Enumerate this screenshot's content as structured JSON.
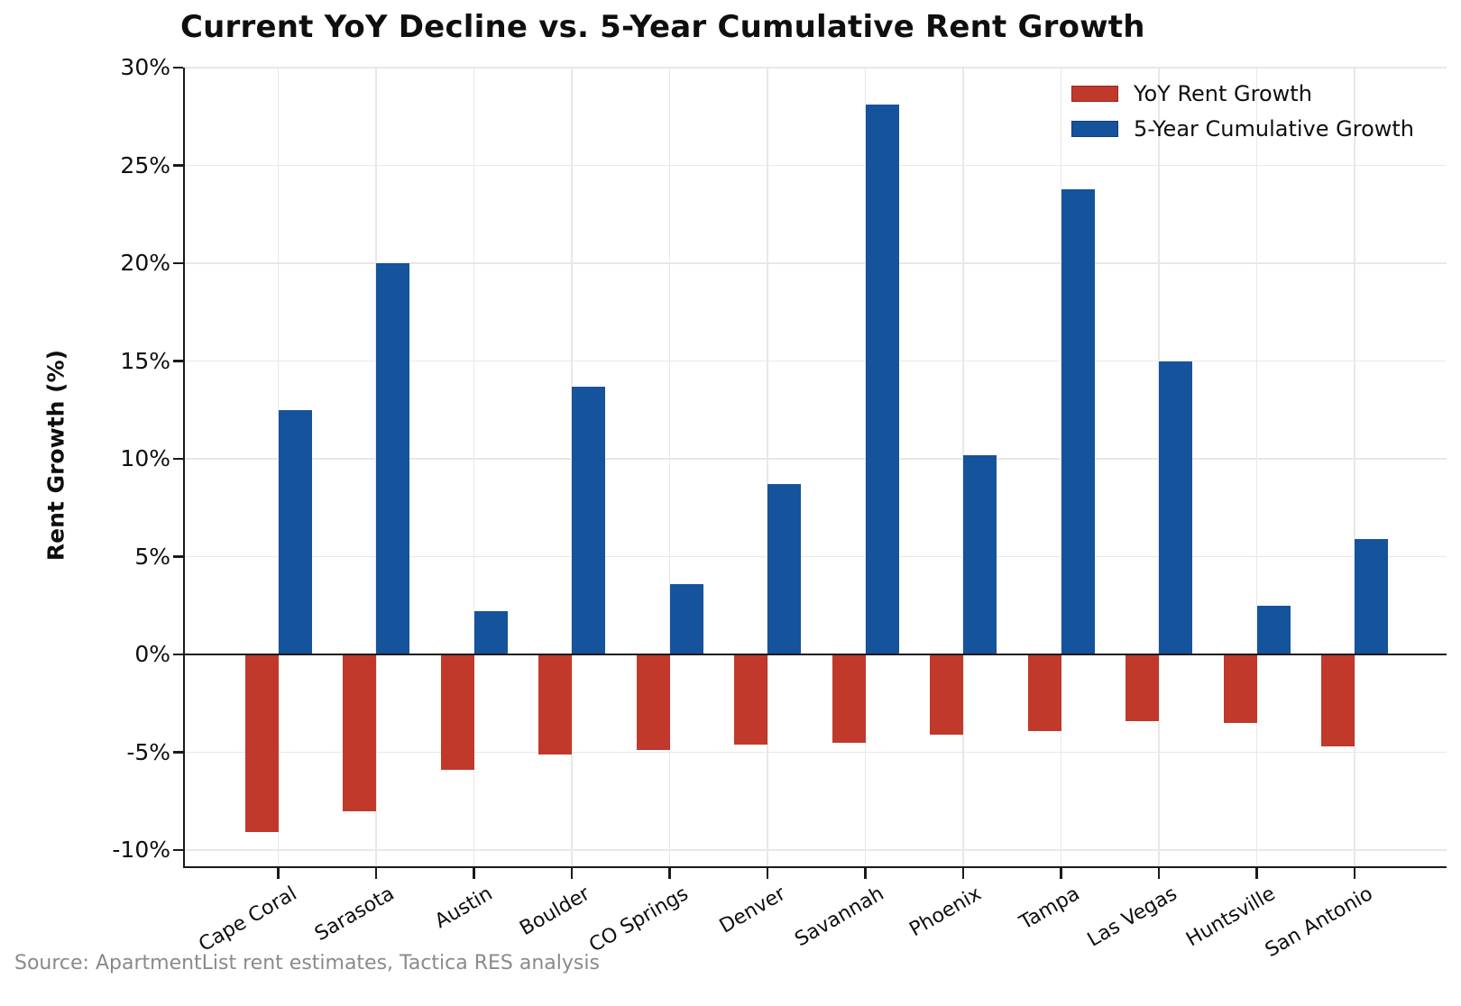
{
  "chart_data": {
    "type": "bar",
    "title": "Current YoY Decline vs. 5-Year Cumulative Rent Growth",
    "xlabel": "",
    "ylabel": "Rent Growth (%)",
    "categories": [
      "Cape Coral",
      "Sarasota",
      "Austin",
      "Boulder",
      "CO Springs",
      "Denver",
      "Savannah",
      "Phoenix",
      "Tampa",
      "Las Vegas",
      "Huntsville",
      "San Antonio"
    ],
    "series": [
      {
        "name": "YoY Rent Growth",
        "color": "#c0392b",
        "values": [
          -9.1,
          -8.0,
          -5.9,
          -5.1,
          -4.9,
          -4.6,
          -4.5,
          -4.1,
          -3.9,
          -3.4,
          -3.5,
          -4.7
        ]
      },
      {
        "name": "5-Year Cumulative Growth",
        "color": "#15539c",
        "values": [
          12.5,
          20.0,
          2.2,
          13.7,
          3.6,
          8.7,
          28.1,
          10.2,
          23.8,
          15.0,
          2.5,
          5.9
        ]
      }
    ],
    "ylim": [
      -10.9,
      30
    ],
    "yticks": [
      30,
      25,
      20,
      15,
      10,
      5,
      0,
      -5,
      -10
    ],
    "ytick_suffix": "%",
    "grid": true,
    "legend_position": "upper right",
    "source": "Source: ApartmentList rent estimates, Tactica RES analysis"
  }
}
